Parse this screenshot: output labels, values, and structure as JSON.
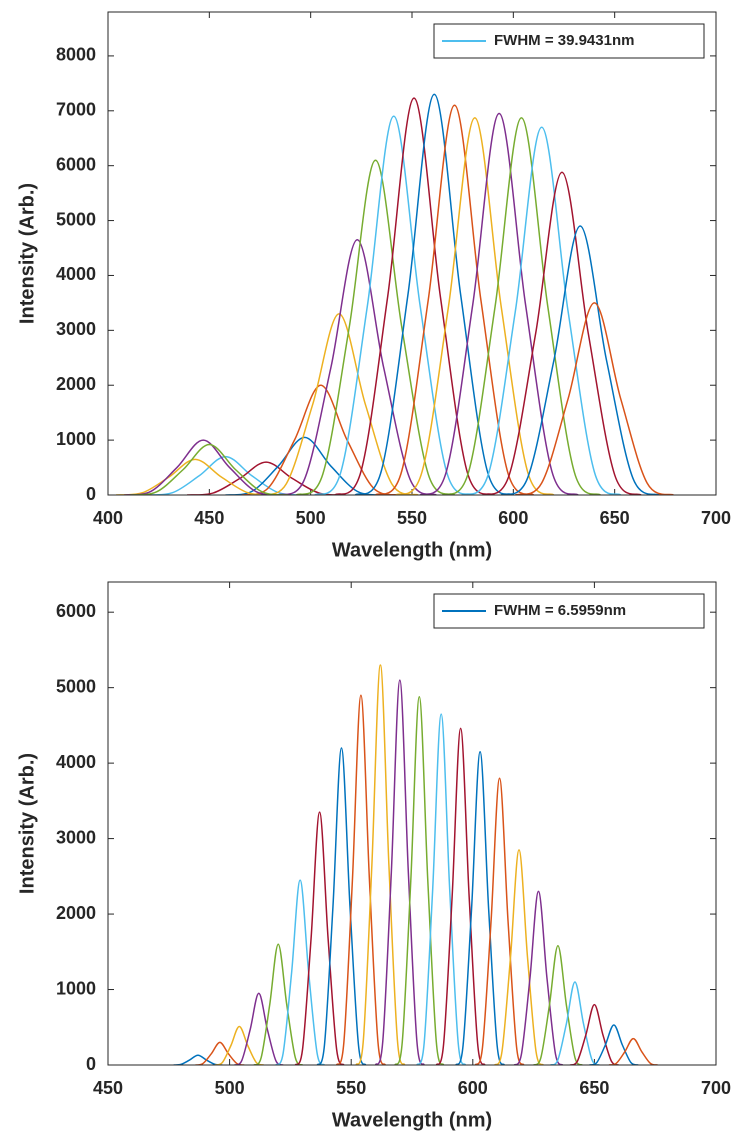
{
  "chart_data": [
    {
      "type": "line",
      "xlabel": "Wavelength (nm)",
      "ylabel": "Intensity (Arb.)",
      "xlim": [
        400,
        700
      ],
      "xticks": [
        400,
        450,
        500,
        550,
        600,
        650,
        700
      ],
      "ylim": [
        0,
        8800
      ],
      "yticks": [
        0,
        1000,
        2000,
        3000,
        4000,
        5000,
        6000,
        7000,
        8000
      ],
      "legend": "upper right",
      "series": [
        {
          "name": "FWHM = 39.9431nm",
          "color": "#4DBEEE",
          "x": [
            419,
            432,
            445,
            458,
            471,
            484,
            497
          ],
          "values": [
            0,
            44,
            350,
            700,
            350,
            44,
            0
          ]
        },
        {
          "color": "#A2142F",
          "x": [
            439,
            452,
            465,
            478,
            491,
            504,
            517
          ],
          "values": [
            0,
            38,
            300,
            600,
            300,
            38,
            0
          ]
        },
        {
          "color": "#0072BD",
          "x": [
            458,
            471,
            484,
            497,
            510,
            523,
            536
          ],
          "values": [
            0,
            66,
            525,
            1050,
            525,
            66,
            0
          ]
        },
        {
          "color": "#D95319",
          "x": [
            466,
            479,
            492,
            505,
            518,
            531,
            544
          ],
          "values": [
            0,
            125,
            1000,
            2000,
            1000,
            125,
            0
          ]
        },
        {
          "color": "#EDB120",
          "x": [
            475,
            488,
            501,
            514,
            527,
            540,
            553
          ],
          "values": [
            0,
            206,
            1650,
            3300,
            1650,
            206,
            0
          ]
        },
        {
          "color": "#7E2F8E",
          "x": [
            484,
            497,
            510,
            523,
            536,
            549,
            562
          ],
          "values": [
            0,
            291,
            2325,
            4650,
            2325,
            291,
            0
          ]
        },
        {
          "color": "#77AC30",
          "x": [
            493,
            506,
            519,
            532,
            545,
            558,
            571
          ],
          "values": [
            0,
            381,
            3050,
            6100,
            3050,
            381,
            0
          ]
        },
        {
          "color": "#4DBEEE",
          "x": [
            502,
            515,
            528,
            541,
            554,
            567,
            580
          ],
          "values": [
            0,
            431,
            3450,
            6900,
            3450,
            431,
            0
          ]
        },
        {
          "color": "#A2142F",
          "x": [
            512,
            525,
            538,
            551,
            564,
            577,
            590
          ],
          "values": [
            0,
            452,
            3615,
            7230,
            3615,
            452,
            0
          ]
        },
        {
          "color": "#0072BD",
          "x": [
            522,
            535,
            548,
            561,
            574,
            587,
            600
          ],
          "values": [
            0,
            456,
            3650,
            7300,
            3650,
            456,
            0
          ]
        },
        {
          "color": "#D95319",
          "x": [
            532,
            545,
            558,
            571,
            584,
            597,
            610
          ],
          "values": [
            0,
            444,
            3550,
            7100,
            3550,
            444,
            0
          ]
        },
        {
          "color": "#EDB120",
          "x": [
            542,
            555,
            568,
            581,
            594,
            607,
            620
          ],
          "values": [
            0,
            429,
            3435,
            6870,
            3435,
            429,
            0
          ]
        },
        {
          "color": "#7E2F8E",
          "x": [
            554,
            567,
            580,
            593,
            606,
            619,
            632
          ],
          "values": [
            0,
            434,
            3475,
            6950,
            3475,
            434,
            0
          ]
        },
        {
          "color": "#77AC30",
          "x": [
            565,
            578,
            591,
            604,
            617,
            630,
            643
          ],
          "values": [
            0,
            429,
            3435,
            6870,
            3435,
            429,
            0
          ]
        },
        {
          "color": "#4DBEEE",
          "x": [
            575,
            588,
            601,
            614,
            627,
            640,
            653
          ],
          "values": [
            0,
            419,
            3350,
            6700,
            3350,
            419,
            0
          ]
        },
        {
          "color": "#A2142F",
          "x": [
            585,
            598,
            611,
            624,
            637,
            650,
            663
          ],
          "values": [
            0,
            368,
            2940,
            5880,
            2940,
            368,
            0
          ]
        },
        {
          "color": "#0072BD",
          "x": [
            594,
            607,
            620,
            633,
            646,
            659,
            672
          ],
          "values": [
            0,
            306,
            2450,
            4900,
            2450,
            306,
            0
          ]
        },
        {
          "color": "#D95319",
          "x": [
            601,
            614,
            627,
            640,
            653,
            666,
            679
          ],
          "values": [
            0,
            219,
            1750,
            3500,
            1750,
            219,
            0
          ]
        },
        {
          "color": "#EDB120",
          "x": [
            404,
            417,
            430,
            443,
            456,
            469,
            482
          ],
          "values": [
            0,
            41,
            325,
            650,
            325,
            41,
            0
          ]
        },
        {
          "color": "#7E2F8E",
          "x": [
            408,
            421,
            434,
            447,
            460,
            473,
            486
          ],
          "values": [
            0,
            63,
            500,
            1000,
            500,
            63,
            0
          ]
        },
        {
          "color": "#77AC30",
          "x": [
            411,
            424,
            437,
            450,
            463,
            476,
            489
          ],
          "values": [
            0,
            58,
            460,
            920,
            460,
            58,
            0
          ]
        }
      ]
    },
    {
      "type": "line",
      "xlabel": "Wavelength (nm)",
      "ylabel": "Intensity (Arb.)",
      "xlim": [
        450,
        700
      ],
      "xticks": [
        450,
        500,
        550,
        600,
        650,
        700
      ],
      "ylim": [
        0,
        6400
      ],
      "yticks": [
        0,
        1000,
        2000,
        3000,
        4000,
        5000,
        6000
      ],
      "legend": "upper right",
      "series": [
        {
          "name": "FWHM = 6.5959nm",
          "color": "#0072BD",
          "x": [
            477,
            480,
            483.5,
            487,
            490.5,
            494,
            497
          ],
          "values": [
            0,
            8,
            65,
            130,
            65,
            8,
            0
          ]
        },
        {
          "color": "#D95319",
          "x": [
            486,
            489,
            492.5,
            496,
            499.5,
            503,
            506
          ],
          "values": [
            0,
            19,
            150,
            300,
            150,
            19,
            0
          ]
        },
        {
          "color": "#EDB120",
          "x": [
            494,
            497,
            500.5,
            504,
            507.5,
            511,
            514
          ],
          "values": [
            0,
            32,
            255,
            510,
            255,
            32,
            0
          ]
        },
        {
          "color": "#7E2F8E",
          "x": [
            502,
            505,
            508.5,
            512,
            515.5,
            519,
            522
          ],
          "values": [
            0,
            59,
            475,
            950,
            475,
            59,
            0
          ]
        },
        {
          "color": "#77AC30",
          "x": [
            510,
            513,
            516.5,
            520,
            523.5,
            527,
            530
          ],
          "values": [
            0,
            100,
            800,
            1600,
            800,
            100,
            0
          ]
        },
        {
          "color": "#4DBEEE",
          "x": [
            519,
            522,
            525.5,
            529,
            532.5,
            536,
            539
          ],
          "values": [
            0,
            153,
            1225,
            2450,
            1225,
            153,
            0
          ]
        },
        {
          "color": "#A2142F",
          "x": [
            527,
            530,
            533.5,
            537,
            540.5,
            544,
            547
          ],
          "values": [
            0,
            209,
            1675,
            3350,
            1675,
            209,
            0
          ]
        },
        {
          "color": "#0072BD",
          "x": [
            536,
            539,
            542.5,
            546,
            549.5,
            553,
            556
          ],
          "values": [
            0,
            263,
            2100,
            4200,
            2100,
            263,
            0
          ]
        },
        {
          "color": "#D95319",
          "x": [
            544,
            547,
            550.5,
            554,
            557.5,
            561,
            564
          ],
          "values": [
            0,
            306,
            2450,
            4900,
            2450,
            306,
            0
          ]
        },
        {
          "color": "#EDB120",
          "x": [
            552,
            555,
            558.5,
            562,
            565.5,
            569,
            572
          ],
          "values": [
            0,
            331,
            2650,
            5300,
            2650,
            331,
            0
          ]
        },
        {
          "color": "#7E2F8E",
          "x": [
            560,
            563,
            566.5,
            570,
            573.5,
            577,
            580
          ],
          "values": [
            0,
            319,
            2550,
            5100,
            2550,
            319,
            0
          ]
        },
        {
          "color": "#77AC30",
          "x": [
            568,
            571,
            574.5,
            578,
            581.5,
            585,
            588
          ],
          "values": [
            0,
            305,
            2440,
            4880,
            2440,
            305,
            0
          ]
        },
        {
          "color": "#4DBEEE",
          "x": [
            577,
            580,
            583.5,
            587,
            590.5,
            594,
            597
          ],
          "values": [
            0,
            291,
            2325,
            4650,
            2325,
            291,
            0
          ]
        },
        {
          "color": "#A2142F",
          "x": [
            585,
            588,
            591.5,
            595,
            598.5,
            602,
            605
          ],
          "values": [
            0,
            279,
            2230,
            4460,
            2230,
            279,
            0
          ]
        },
        {
          "color": "#0072BD",
          "x": [
            593,
            596,
            599.5,
            603,
            606.5,
            610,
            613
          ],
          "values": [
            0,
            259,
            2075,
            4150,
            2075,
            259,
            0
          ]
        },
        {
          "color": "#D95319",
          "x": [
            601,
            604,
            607.5,
            611,
            614.5,
            618,
            621
          ],
          "values": [
            0,
            238,
            1900,
            3800,
            1900,
            238,
            0
          ]
        },
        {
          "color": "#EDB120",
          "x": [
            609,
            612,
            615.5,
            619,
            622.5,
            626,
            629
          ],
          "values": [
            0,
            178,
            1425,
            2850,
            1425,
            178,
            0
          ]
        },
        {
          "color": "#7E2F8E",
          "x": [
            617,
            620,
            623.5,
            627,
            630.5,
            634,
            637
          ],
          "values": [
            0,
            144,
            1150,
            2300,
            1150,
            144,
            0
          ]
        },
        {
          "color": "#77AC30",
          "x": [
            625,
            628,
            631.5,
            635,
            638.5,
            642,
            645
          ],
          "values": [
            0,
            99,
            790,
            1580,
            790,
            99,
            0
          ]
        },
        {
          "color": "#4DBEEE",
          "x": [
            632,
            635,
            638.5,
            642,
            645.5,
            649,
            652
          ],
          "values": [
            0,
            69,
            550,
            1100,
            550,
            69,
            0
          ]
        },
        {
          "color": "#A2142F",
          "x": [
            640,
            643,
            646.5,
            650,
            653.5,
            657,
            660
          ],
          "values": [
            0,
            50,
            400,
            800,
            400,
            50,
            0
          ]
        },
        {
          "color": "#0072BD",
          "x": [
            648,
            651,
            654.5,
            658,
            661.5,
            665,
            668
          ],
          "values": [
            0,
            33,
            265,
            530,
            265,
            33,
            0
          ]
        },
        {
          "color": "#D95319",
          "x": [
            656,
            659,
            662.5,
            666,
            669.5,
            673,
            676
          ],
          "values": [
            0,
            22,
            175,
            350,
            175,
            22,
            0
          ]
        }
      ]
    }
  ]
}
